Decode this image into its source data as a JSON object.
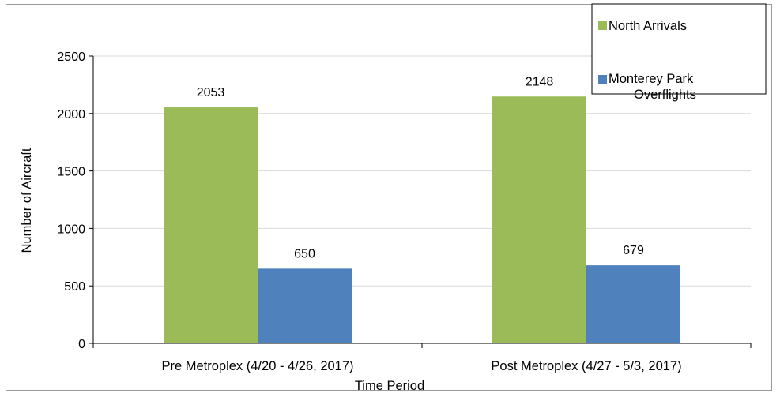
{
  "chart_data": {
    "type": "bar",
    "title": "",
    "xlabel": "Time Period",
    "ylabel": "Number of Aircraft",
    "categories": [
      "Pre Metroplex (4/20 - 4/26, 2017)",
      "Post Metroplex (4/27 - 5/3, 2017)"
    ],
    "series": [
      {
        "name": "North Arrivals",
        "values": [
          2053,
          2148
        ],
        "color": "#9bbb59"
      },
      {
        "name": "Monterey Park Overflights",
        "values": [
          650,
          679
        ],
        "color": "#4f81bd"
      }
    ],
    "ylim": [
      0,
      2500
    ],
    "yticks": [
      "0",
      "500",
      "1000",
      "1500",
      "2000",
      "2500"
    ],
    "data_labels": [
      "2053",
      "650",
      "2148",
      "679"
    ],
    "grid": true,
    "legend_position": "top-right"
  },
  "legend": {
    "north_arrivals": "North Arrivals",
    "monterey_line1": "Monterey Park",
    "monterey_line2": "Overflights"
  }
}
